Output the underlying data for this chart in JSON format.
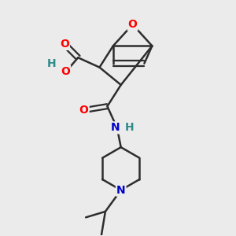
{
  "background_color": "#ebebeb",
  "bond_color": "#2d2d2d",
  "bond_width": 1.8,
  "atom_colors": {
    "O": "#ff0000",
    "N": "#0000cc",
    "H_teal": "#2e8b8b",
    "C": "#2d2d2d"
  },
  "figsize": [
    3.0,
    3.0
  ],
  "dpi": 100
}
